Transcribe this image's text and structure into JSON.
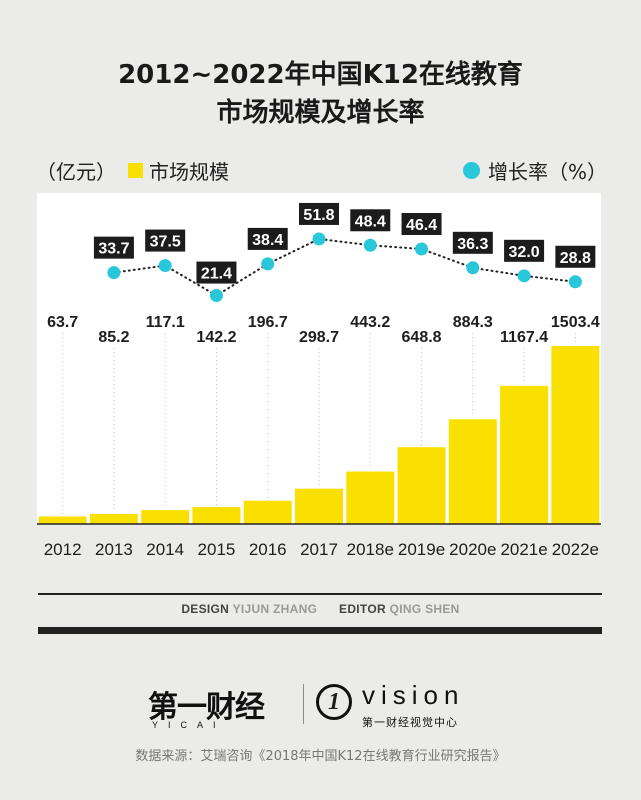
{
  "header": {
    "title_line1": "2012~2022年中国K12在线教育",
    "title_line2": "市场规模及增长率"
  },
  "legend": {
    "unit": "（亿元）",
    "bar_label": "市场规模",
    "line_label": "增长率（%）"
  },
  "chart_data": {
    "type": "bar",
    "title": "2012~2022年中国K12在线教育市场规模及增长率",
    "categories": [
      "2012",
      "2013",
      "2014",
      "2015",
      "2016",
      "2017",
      "2018e",
      "2019e",
      "2020e",
      "2021e",
      "2022e"
    ],
    "series": [
      {
        "name": "市场规模",
        "type": "bar",
        "values": [
          63.7,
          85.2,
          117.1,
          142.2,
          196.7,
          298.7,
          443.2,
          648.8,
          884.3,
          1167.4,
          1503.4
        ]
      },
      {
        "name": "增长率",
        "type": "line",
        "values": [
          null,
          33.7,
          37.5,
          21.4,
          38.4,
          51.8,
          48.4,
          46.4,
          36.3,
          32.0,
          28.8
        ]
      }
    ],
    "bar_color": "#f9e000",
    "line_color": "#28c7da"
  },
  "credit": {
    "design_label": "DESIGN",
    "design_name": "YIJUN ZHANG",
    "editor_label": "EDITOR",
    "editor_name": "QING SHEN"
  },
  "logos": {
    "yicai": "第一财经",
    "yicai_sub": "YICAI",
    "vision_mark": "1",
    "vision": "vision",
    "vision_sub": "第一财经视觉中心"
  },
  "source": "数据来源：艾瑞咨询《2018年中国K12在线教育行业研究报告》"
}
